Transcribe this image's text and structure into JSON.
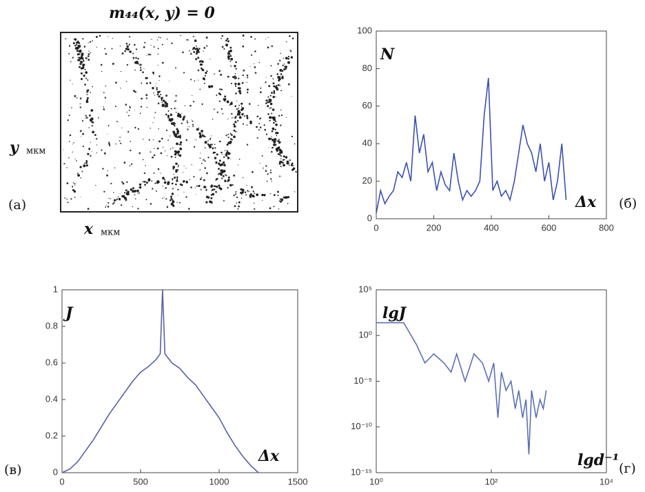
{
  "panel_a": {
    "title": "m₄₄(x, y) = 0",
    "y_symbol": "y",
    "y_unit": "мкм",
    "x_symbol": "x",
    "x_unit": "мкм",
    "panel_label": "(а)"
  },
  "chart_data": [
    {
      "type": "line",
      "y_label": "N",
      "x_label": "Δx",
      "panel_label": "(б)",
      "color": "#3a4fb0",
      "xlim": [
        0,
        800
      ],
      "ylim": [
        0,
        100
      ],
      "xticks": [
        0,
        200,
        400,
        600,
        800
      ],
      "yticks": [
        0,
        20,
        40,
        60,
        80,
        100
      ],
      "x": [
        0,
        15,
        30,
        45,
        60,
        75,
        90,
        105,
        120,
        135,
        150,
        165,
        180,
        195,
        210,
        225,
        240,
        255,
        270,
        285,
        300,
        315,
        330,
        345,
        360,
        375,
        390,
        405,
        420,
        435,
        450,
        465,
        480,
        495,
        510,
        525,
        540,
        555,
        570,
        585,
        600,
        615,
        630,
        645,
        660
      ],
      "values": [
        3,
        15,
        8,
        12,
        15,
        25,
        22,
        30,
        20,
        55,
        35,
        45,
        25,
        30,
        15,
        25,
        18,
        15,
        35,
        20,
        10,
        15,
        12,
        15,
        20,
        55,
        75,
        15,
        20,
        12,
        15,
        10,
        20,
        35,
        50,
        40,
        35,
        25,
        40,
        20,
        30,
        10,
        20,
        40,
        10
      ]
    },
    {
      "type": "line",
      "y_label": "J",
      "x_label": "Δx",
      "panel_label": "(в)",
      "color": "#5560a8",
      "xlim": [
        0,
        1500
      ],
      "ylim": [
        0,
        1
      ],
      "xticks": [
        0,
        500,
        1000,
        1500
      ],
      "yticks": [
        0,
        0.2,
        0.4,
        0.6,
        0.8,
        1
      ],
      "x": [
        0,
        50,
        100,
        150,
        200,
        250,
        300,
        350,
        400,
        450,
        500,
        550,
        600,
        625,
        640,
        655,
        700,
        750,
        800,
        850,
        900,
        950,
        1000,
        1050,
        1100,
        1150,
        1200,
        1250
      ],
      "values": [
        0,
        0.02,
        0.06,
        0.12,
        0.18,
        0.25,
        0.32,
        0.38,
        0.44,
        0.5,
        0.55,
        0.58,
        0.62,
        0.65,
        1.0,
        0.65,
        0.6,
        0.57,
        0.52,
        0.48,
        0.42,
        0.36,
        0.3,
        0.22,
        0.15,
        0.09,
        0.04,
        0
      ]
    },
    {
      "type": "line",
      "y_label": "lgJ",
      "x_label": "lgd⁻¹",
      "panel_label": "(г)",
      "color": "#5a6fb5",
      "xscale": "log",
      "yscale": "log",
      "xlim": [
        1,
        10000
      ],
      "ylim": [
        1e-15,
        100000
      ],
      "xticks": [
        {
          "value": 1,
          "label": "10⁰"
        },
        {
          "value": 100,
          "label": "10²"
        },
        {
          "value": 10000,
          "label": "10⁴"
        }
      ],
      "yticks": [
        {
          "value": 1e-15,
          "label": "10⁻¹⁵"
        },
        {
          "value": 1e-10,
          "label": "10⁻¹⁰"
        },
        {
          "value": 1e-05,
          "label": "10⁻⁵"
        },
        {
          "value": 1,
          "label": "10⁰"
        },
        {
          "value": 100000,
          "label": "10⁵"
        }
      ],
      "x": [
        1,
        3,
        5,
        7,
        10,
        15,
        20,
        25,
        35,
        50,
        70,
        90,
        110,
        130,
        150,
        180,
        220,
        260,
        300,
        350,
        400,
        450,
        500,
        600,
        700,
        800,
        900
      ],
      "values": [
        25,
        25,
        0.1,
        0.001,
        0.01,
        0.001,
        0.0001,
        0.01,
        1e-05,
        0.01,
        0.001,
        1e-05,
        0.001,
        1e-09,
        0.0001,
        1e-06,
        1e-05,
        1e-08,
        1e-06,
        1e-09,
        1e-07,
        1e-13,
        1e-06,
        1e-09,
        1e-07,
        1e-08,
        1e-06
      ]
    }
  ]
}
